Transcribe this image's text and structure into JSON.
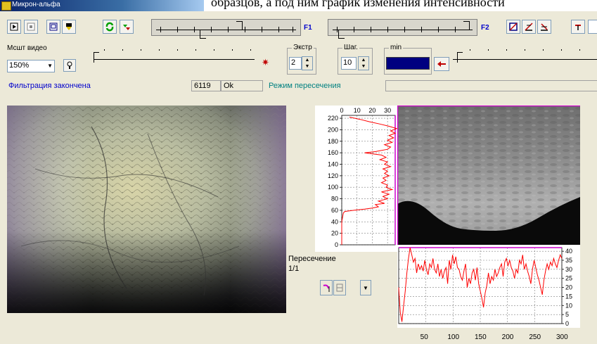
{
  "doc_text": "образцов, а под ним график изменения интенсивности",
  "window": {
    "title": "Микрон-альфа"
  },
  "toolbar": {
    "f1_label": "F1",
    "f2_label": "F2"
  },
  "controls": {
    "scale_label": "Мсшт видео",
    "scale_value": "150%",
    "extr_title": "Экстр",
    "extr_value": "2",
    "step_title": "Шаг.",
    "step_value": "10",
    "min_title": "min"
  },
  "status": {
    "message": "Фильтрация закончена",
    "count": "6119",
    "ok": "Ok",
    "mode": "Режим пересечения"
  },
  "intersection": {
    "label": "Пересечение",
    "fraction": "1/1"
  },
  "colors": {
    "accent_blue": "#0000cc",
    "plot_red": "#ff0000",
    "plot_magenta": "#cc00cc",
    "min_box": "#000080"
  },
  "chart_data": [
    {
      "type": "line",
      "orientation": "vertical-profile",
      "x_ticks": [
        "0",
        "10",
        "20",
        "30"
      ],
      "y_ticks": [
        "0",
        "20",
        "40",
        "60",
        "80",
        "100",
        "120",
        "140",
        "160",
        "180",
        "200",
        "220"
      ],
      "xlim": [
        0,
        35
      ],
      "ylim": [
        0,
        225
      ],
      "grid": true,
      "series": [
        {
          "points": [
            [
              0,
              0
            ],
            [
              0,
              20
            ],
            [
              0,
              40
            ],
            [
              1,
              55
            ],
            [
              2,
              58
            ],
            [
              8,
              60
            ],
            [
              15,
              62
            ],
            [
              20,
              64
            ],
            [
              24,
              66
            ],
            [
              22,
              70
            ],
            [
              28,
              72
            ],
            [
              24,
              76
            ],
            [
              30,
              80
            ],
            [
              27,
              84
            ],
            [
              31,
              88
            ],
            [
              26,
              92
            ],
            [
              33,
              96
            ],
            [
              29,
              100
            ],
            [
              30,
              104
            ],
            [
              26,
              108
            ],
            [
              29,
              112
            ],
            [
              27,
              116
            ],
            [
              31,
              120
            ],
            [
              28,
              124
            ],
            [
              30,
              128
            ],
            [
              27,
              132
            ],
            [
              32,
              136
            ],
            [
              28,
              140
            ],
            [
              30,
              144
            ],
            [
              25,
              148
            ],
            [
              29,
              152
            ],
            [
              26,
              156
            ],
            [
              15,
              160
            ],
            [
              22,
              162
            ],
            [
              30,
              166
            ],
            [
              32,
              170
            ],
            [
              28,
              174
            ],
            [
              33,
              178
            ],
            [
              30,
              182
            ],
            [
              34,
              186
            ],
            [
              31,
              190
            ],
            [
              35,
              194
            ],
            [
              32,
              198
            ],
            [
              36,
              202
            ],
            [
              31,
              206
            ],
            [
              25,
              210
            ],
            [
              18,
              214
            ],
            [
              12,
              218
            ],
            [
              5,
              222
            ]
          ]
        }
      ]
    },
    {
      "type": "line",
      "orientation": "horizontal-profile",
      "x_ticks": [
        "50",
        "100",
        "150",
        "200",
        "250",
        "300"
      ],
      "y_ticks": [
        "0",
        "5",
        "10",
        "15",
        "20",
        "25",
        "30",
        "35",
        "40"
      ],
      "xlim": [
        0,
        300
      ],
      "ylim": [
        0,
        42
      ],
      "grid": true,
      "series": [
        {
          "points": [
            [
              0,
              20
            ],
            [
              3,
              6
            ],
            [
              6,
              1
            ],
            [
              9,
              10
            ],
            [
              12,
              18
            ],
            [
              15,
              28
            ],
            [
              18,
              36
            ],
            [
              21,
              42
            ],
            [
              24,
              38
            ],
            [
              27,
              34
            ],
            [
              30,
              36
            ],
            [
              33,
              28
            ],
            [
              36,
              33
            ],
            [
              39,
              30
            ],
            [
              42,
              32
            ],
            [
              45,
              29
            ],
            [
              48,
              35
            ],
            [
              51,
              30
            ],
            [
              54,
              27
            ],
            [
              57,
              33
            ],
            [
              60,
              31
            ],
            [
              63,
              36
            ],
            [
              66,
              30
            ],
            [
              69,
              28
            ],
            [
              72,
              33
            ],
            [
              75,
              26
            ],
            [
              78,
              30
            ],
            [
              81,
              25
            ],
            [
              84,
              29
            ],
            [
              87,
              31
            ],
            [
              90,
              22
            ],
            [
              93,
              35
            ],
            [
              96,
              30
            ],
            [
              99,
              38
            ],
            [
              102,
              33
            ],
            [
              105,
              37
            ],
            [
              108,
              31
            ],
            [
              111,
              30
            ],
            [
              114,
              26
            ],
            [
              117,
              24
            ],
            [
              120,
              29
            ],
            [
              123,
              33
            ],
            [
              126,
              20
            ],
            [
              129,
              25
            ],
            [
              132,
              22
            ],
            [
              135,
              28
            ],
            [
              138,
              30
            ],
            [
              141,
              24
            ],
            [
              144,
              31
            ],
            [
              147,
              22
            ],
            [
              150,
              18
            ],
            [
              153,
              14
            ],
            [
              156,
              9
            ],
            [
              159,
              17
            ],
            [
              162,
              21
            ],
            [
              165,
              28
            ],
            [
              168,
              22
            ],
            [
              171,
              26
            ],
            [
              174,
              24
            ],
            [
              177,
              30
            ],
            [
              180,
              26
            ],
            [
              183,
              28
            ],
            [
              186,
              31
            ],
            [
              189,
              33
            ],
            [
              192,
              26
            ],
            [
              195,
              34
            ],
            [
              198,
              36
            ],
            [
              201,
              32
            ],
            [
              204,
              35
            ],
            [
              207,
              31
            ],
            [
              210,
              29
            ],
            [
              213,
              25
            ],
            [
              216,
              30
            ],
            [
              219,
              28
            ],
            [
              222,
              35
            ],
            [
              225,
              33
            ],
            [
              228,
              38
            ],
            [
              231,
              30
            ],
            [
              234,
              33
            ],
            [
              237,
              29
            ],
            [
              240,
              26
            ],
            [
              243,
              22
            ],
            [
              246,
              30
            ],
            [
              249,
              35
            ],
            [
              252,
              31
            ],
            [
              255,
              27
            ],
            [
              258,
              24
            ],
            [
              261,
              20
            ],
            [
              264,
              16
            ],
            [
              267,
              24
            ],
            [
              270,
              29
            ],
            [
              273,
              33
            ],
            [
              276,
              30
            ],
            [
              279,
              34
            ],
            [
              282,
              32
            ],
            [
              285,
              36
            ],
            [
              288,
              33
            ],
            [
              291,
              31
            ],
            [
              294,
              35
            ],
            [
              297,
              38
            ],
            [
              300,
              36
            ]
          ]
        }
      ]
    }
  ]
}
